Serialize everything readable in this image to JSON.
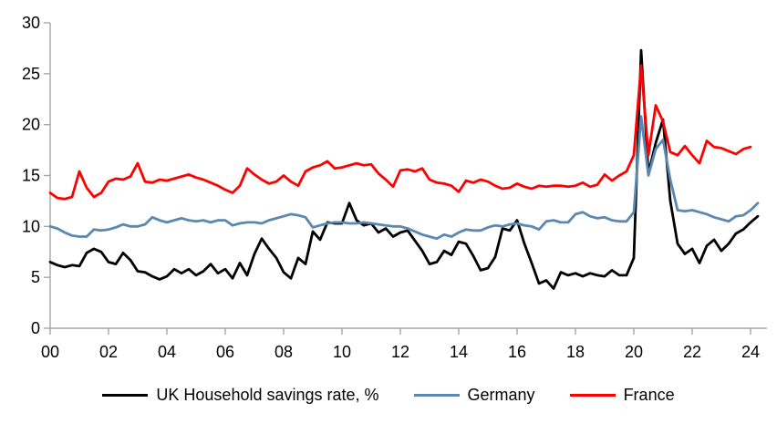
{
  "chart_data": {
    "type": "line",
    "title": "",
    "grid": false,
    "legend_position": "bottom",
    "x_axis": {
      "unit": "year (quarterly data)",
      "start_year": 2000,
      "quarter_step": 0.25,
      "tick_interval_years": 2,
      "tick_labels": [
        "00",
        "02",
        "04",
        "06",
        "08",
        "10",
        "12",
        "14",
        "16",
        "18",
        "20",
        "22",
        "24"
      ]
    },
    "y_axis": {
      "min": 0,
      "max": 30,
      "tick_step": 5,
      "tick_labels": [
        "0",
        "5",
        "10",
        "15",
        "20",
        "25",
        "30"
      ]
    },
    "series": [
      {
        "name": "UK Household savings rate, %",
        "color": "#000000",
        "values": [
          6.5,
          6.2,
          6.0,
          6.2,
          6.1,
          7.4,
          7.8,
          7.5,
          6.5,
          6.3,
          7.4,
          6.7,
          5.6,
          5.5,
          5.1,
          4.8,
          5.1,
          5.8,
          5.4,
          5.8,
          5.2,
          5.6,
          6.3,
          5.4,
          5.8,
          4.9,
          6.4,
          5.2,
          7.3,
          8.8,
          7.8,
          6.9,
          5.5,
          4.9,
          6.9,
          6.3,
          9.5,
          8.7,
          10.4,
          10.3,
          10.3,
          12.3,
          10.6,
          10.1,
          10.3,
          9.4,
          9.8,
          9.0,
          9.4,
          9.6,
          8.6,
          7.6,
          6.3,
          6.5,
          7.6,
          7.2,
          8.5,
          8.3,
          7.1,
          5.7,
          5.9,
          7.0,
          9.8,
          9.6,
          10.6,
          8.3,
          6.4,
          4.4,
          4.7,
          3.9,
          5.5,
          5.2,
          5.4,
          5.1,
          5.4,
          5.2,
          5.1,
          5.7,
          5.2,
          5.2,
          6.9,
          27.3,
          15.2,
          18.2,
          20.5,
          12.5,
          8.3,
          7.3,
          7.8,
          6.4,
          8.1,
          8.7,
          7.6,
          8.3,
          9.3,
          9.7,
          10.4,
          11.0
        ]
      },
      {
        "name": "Germany",
        "color": "#5B87B0",
        "values": [
          10.0,
          9.8,
          9.4,
          9.1,
          9.0,
          9.0,
          9.7,
          9.6,
          9.7,
          9.9,
          10.2,
          10.0,
          10.0,
          10.2,
          10.9,
          10.6,
          10.4,
          10.6,
          10.8,
          10.6,
          10.5,
          10.6,
          10.4,
          10.6,
          10.6,
          10.1,
          10.3,
          10.4,
          10.4,
          10.3,
          10.6,
          10.8,
          11.0,
          11.2,
          11.1,
          10.9,
          9.9,
          10.1,
          10.3,
          10.4,
          10.4,
          10.3,
          10.3,
          10.4,
          10.3,
          10.2,
          10.1,
          10.0,
          10.0,
          9.8,
          9.5,
          9.2,
          9.0,
          8.8,
          9.2,
          9.0,
          9.4,
          9.7,
          9.6,
          9.6,
          9.9,
          10.1,
          10.0,
          10.2,
          10.3,
          10.1,
          10.0,
          9.7,
          10.5,
          10.6,
          10.4,
          10.4,
          11.2,
          11.4,
          11.0,
          10.8,
          10.9,
          10.6,
          10.5,
          10.5,
          11.4,
          20.8,
          15.0,
          17.6,
          18.5,
          14.6,
          11.6,
          11.5,
          11.6,
          11.4,
          11.2,
          10.9,
          10.7,
          10.5,
          11.0,
          11.1,
          11.6,
          12.3
        ]
      },
      {
        "name": "France",
        "color": "#FF0000",
        "values": [
          13.3,
          12.8,
          12.7,
          12.9,
          15.4,
          13.8,
          12.9,
          13.3,
          14.4,
          14.7,
          14.6,
          14.9,
          16.2,
          14.4,
          14.3,
          14.6,
          14.5,
          14.7,
          14.9,
          15.1,
          14.8,
          14.6,
          14.3,
          14.0,
          13.6,
          13.3,
          14.0,
          15.7,
          15.1,
          14.6,
          14.2,
          14.4,
          15.0,
          14.4,
          14.0,
          15.4,
          15.8,
          16.0,
          16.4,
          15.7,
          15.8,
          16.0,
          16.2,
          16.0,
          16.1,
          15.2,
          14.6,
          13.9,
          15.5,
          15.6,
          15.4,
          15.7,
          14.6,
          14.3,
          14.2,
          14.0,
          13.4,
          14.5,
          14.3,
          14.6,
          14.4,
          14.0,
          13.7,
          13.8,
          14.2,
          13.9,
          13.7,
          14.0,
          13.9,
          14.0,
          14.0,
          13.9,
          14.0,
          14.3,
          13.9,
          14.1,
          15.1,
          14.5,
          15.0,
          15.4,
          17.0,
          25.8,
          17.0,
          21.9,
          20.3,
          17.3,
          17.0,
          17.9,
          17.0,
          16.2,
          18.4,
          17.8,
          17.7,
          17.4,
          17.1,
          17.6,
          17.8
        ]
      }
    ]
  },
  "colors": {
    "axis": "#A6A6A6",
    "tick_text": "#000000",
    "background": "#FFFFFF"
  }
}
